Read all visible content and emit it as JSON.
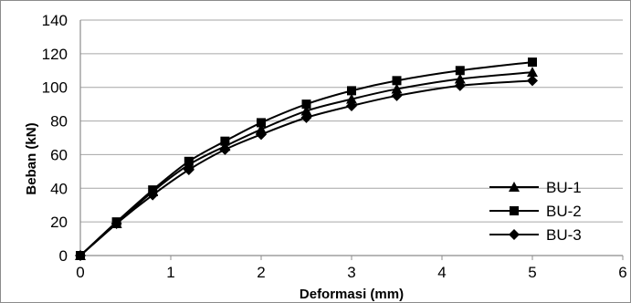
{
  "chart_data": {
    "type": "line",
    "title": "",
    "xlabel": "Deformasi (mm)",
    "ylabel": "Beban (kN)",
    "xlim": [
      0,
      6
    ],
    "ylim": [
      0,
      140
    ],
    "x_ticks": [
      "0",
      "1",
      "2",
      "3",
      "4",
      "5",
      "6"
    ],
    "y_ticks": [
      "0",
      "20",
      "40",
      "60",
      "80",
      "100",
      "120",
      "140"
    ],
    "grid": "horizontal",
    "legend_position": "right",
    "series": [
      {
        "name": "BU-1",
        "marker": "triangle",
        "color": "#000000",
        "x": [
          0,
          0.4,
          0.8,
          1.2,
          1.6,
          2.0,
          2.5,
          3.0,
          3.5,
          4.2,
          5.0
        ],
        "y": [
          0,
          19,
          38,
          54,
          65,
          75,
          86,
          93,
          99,
          105,
          109
        ]
      },
      {
        "name": "BU-2",
        "marker": "square",
        "color": "#000000",
        "x": [
          0,
          0.4,
          0.8,
          1.2,
          1.6,
          2.0,
          2.5,
          3.0,
          3.5,
          4.2,
          5.0
        ],
        "y": [
          0,
          20,
          39,
          56,
          68,
          79,
          90,
          98,
          104,
          110,
          115
        ]
      },
      {
        "name": "BU-3",
        "marker": "diamond",
        "color": "#000000",
        "x": [
          0,
          0.4,
          0.8,
          1.2,
          1.6,
          2.0,
          2.5,
          3.0,
          3.5,
          4.2,
          5.0
        ],
        "y": [
          0,
          19,
          36,
          51,
          63,
          72,
          82,
          89,
          95,
          101,
          104
        ]
      }
    ]
  }
}
